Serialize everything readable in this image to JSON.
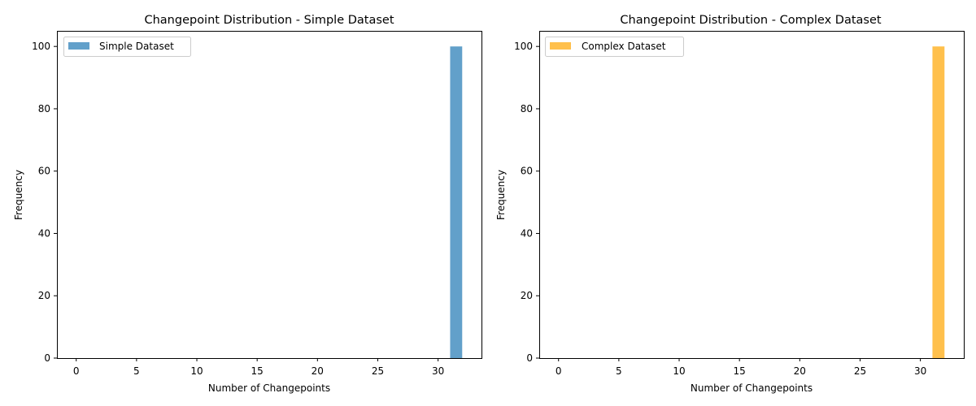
{
  "chart_data": [
    {
      "type": "bar",
      "title": "Changepoint Distribution - Simple Dataset",
      "xlabel": "Number of Changepoints",
      "ylabel": "Frequency",
      "xlim": [
        -1.6,
        33.6
      ],
      "ylim": [
        0,
        105
      ],
      "xticks": [
        0,
        5,
        10,
        15,
        20,
        25,
        30
      ],
      "yticks": [
        0,
        20,
        40,
        60,
        80,
        100
      ],
      "grid": false,
      "legend_position": "upper-left",
      "series": [
        {
          "name": "Simple Dataset",
          "color": "#1f77b4",
          "opacity": 0.7,
          "bins": [
            {
              "x_start": 31,
              "x_end": 32,
              "value": 100
            }
          ]
        }
      ]
    },
    {
      "type": "bar",
      "title": "Changepoint Distribution - Complex Dataset",
      "xlabel": "Number of Changepoints",
      "ylabel": "Frequency",
      "xlim": [
        -1.6,
        33.6
      ],
      "ylim": [
        0,
        105
      ],
      "xticks": [
        0,
        5,
        10,
        15,
        20,
        25,
        30
      ],
      "yticks": [
        0,
        20,
        40,
        60,
        80,
        100
      ],
      "grid": false,
      "legend_position": "upper-left",
      "series": [
        {
          "name": "Complex Dataset",
          "color": "#ffa500",
          "opacity": 0.7,
          "bins": [
            {
              "x_start": 31,
              "x_end": 32,
              "value": 100
            }
          ]
        }
      ]
    }
  ]
}
